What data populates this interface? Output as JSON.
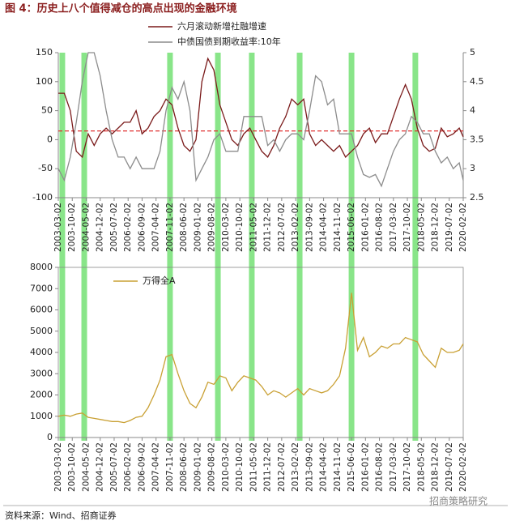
{
  "title": "图 4：历史上八个值得减仓的高点出现的金融环境",
  "source": "资料来源：Wind、招商证券",
  "watermark": "招商策略研究",
  "chart_data": [
    {
      "type": "line",
      "x": [
        "2003-03",
        "2003-06",
        "2003-09",
        "2003-12",
        "2004-03",
        "2004-06",
        "2004-09",
        "2004-12",
        "2005-03",
        "2005-06",
        "2005-09",
        "2005-12",
        "2006-03",
        "2006-06",
        "2006-09",
        "2006-12",
        "2007-03",
        "2007-06",
        "2007-09",
        "2007-12",
        "2008-03",
        "2008-06",
        "2008-09",
        "2008-12",
        "2009-03",
        "2009-06",
        "2009-09",
        "2009-12",
        "2010-03",
        "2010-06",
        "2010-09",
        "2010-12",
        "2011-03",
        "2011-06",
        "2011-09",
        "2011-12",
        "2012-03",
        "2012-06",
        "2012-09",
        "2012-12",
        "2013-03",
        "2013-06",
        "2013-09",
        "2013-12",
        "2014-03",
        "2014-06",
        "2014-09",
        "2014-12",
        "2015-03",
        "2015-06",
        "2015-09",
        "2015-12",
        "2016-03",
        "2016-06",
        "2016-09",
        "2016-12",
        "2017-03",
        "2017-06",
        "2017-09",
        "2017-12",
        "2018-03",
        "2018-06",
        "2018-09",
        "2018-12",
        "2019-03",
        "2019-06",
        "2019-09",
        "2019-12",
        "2020-02"
      ],
      "xlim": [
        "2003-03-02",
        "2020-02-02"
      ],
      "xticks": [
        "2003-03-02",
        "2003-10-02",
        "2004-05-02",
        "2004-12-02",
        "2005-07-02",
        "2006-02-02",
        "2006-09-02",
        "2007-04-02",
        "2007-11-02",
        "2008-06-02",
        "2009-01-02",
        "2009-08-02",
        "2010-03-02",
        "2010-10-02",
        "2011-05-02",
        "2011-12-02",
        "2012-07-02",
        "2013-02-02",
        "2013-09-02",
        "2014-04-02",
        "2014-11-02",
        "2015-06-02",
        "2016-01-02",
        "2016-08-02",
        "2017-03-02",
        "2017-10-02",
        "2018-05-02",
        "2018-12-02",
        "2019-07-02",
        "2020-02-02"
      ],
      "ylim": [
        -100,
        150
      ],
      "yticks": [
        -100,
        -50,
        0,
        50,
        100,
        150
      ],
      "y2lim": [
        2.5,
        5
      ],
      "y2ticks": [
        2.5,
        3,
        3.5,
        4,
        4.5,
        5
      ],
      "reference_line": 15,
      "reference_color": "#e03030",
      "highlights": [
        "2003-05",
        "2004-04",
        "2007-11",
        "2009-11",
        "2011-04",
        "2013-04",
        "2015-06",
        "2018-02"
      ],
      "highlight_color": "#74e074",
      "series": [
        {
          "name": "六月滚动新增社融增速",
          "color": "#7a1a1a",
          "values": [
            80,
            80,
            50,
            -20,
            -30,
            10,
            -10,
            10,
            20,
            10,
            20,
            30,
            30,
            50,
            10,
            20,
            40,
            50,
            70,
            60,
            20,
            -10,
            -20,
            0,
            100,
            140,
            120,
            60,
            30,
            0,
            -10,
            10,
            20,
            0,
            -20,
            -30,
            -10,
            20,
            40,
            70,
            60,
            70,
            10,
            -10,
            0,
            -10,
            -20,
            -10,
            -30,
            -20,
            -10,
            10,
            20,
            -5,
            10,
            10,
            40,
            70,
            95,
            70,
            20,
            -10,
            -20,
            -15,
            20,
            5,
            10,
            20,
            5
          ]
        },
        {
          "name": "中债国债到期收益率:10年",
          "color": "#8c8c8c",
          "axis": "y2",
          "values": [
            3.0,
            2.8,
            3.2,
            3.8,
            4.5,
            5.0,
            5.0,
            4.6,
            4.0,
            3.5,
            3.2,
            3.2,
            3.0,
            3.2,
            3.0,
            3.0,
            3.0,
            3.3,
            4.0,
            4.4,
            4.2,
            4.5,
            4.0,
            2.8,
            3.0,
            3.2,
            3.5,
            3.6,
            3.3,
            3.3,
            3.3,
            3.9,
            3.9,
            3.9,
            3.9,
            3.4,
            3.5,
            3.3,
            3.5,
            3.6,
            3.6,
            3.5,
            4.0,
            4.6,
            4.5,
            4.1,
            4.2,
            3.6,
            3.6,
            3.6,
            3.2,
            2.9,
            2.85,
            2.9,
            2.7,
            3.0,
            3.3,
            3.5,
            3.6,
            3.9,
            3.8,
            3.6,
            3.6,
            3.3,
            3.1,
            3.2,
            3.0,
            3.1,
            2.8
          ]
        }
      ]
    },
    {
      "type": "line",
      "x": [
        "2003-03",
        "2003-06",
        "2003-09",
        "2003-12",
        "2004-03",
        "2004-06",
        "2004-09",
        "2004-12",
        "2005-03",
        "2005-06",
        "2005-09",
        "2005-12",
        "2006-03",
        "2006-06",
        "2006-09",
        "2006-12",
        "2007-03",
        "2007-06",
        "2007-09",
        "2007-12",
        "2008-03",
        "2008-06",
        "2008-09",
        "2008-12",
        "2009-03",
        "2009-06",
        "2009-09",
        "2009-12",
        "2010-03",
        "2010-06",
        "2010-09",
        "2010-12",
        "2011-03",
        "2011-06",
        "2011-09",
        "2011-12",
        "2012-03",
        "2012-06",
        "2012-09",
        "2012-12",
        "2013-03",
        "2013-06",
        "2013-09",
        "2013-12",
        "2014-03",
        "2014-06",
        "2014-09",
        "2014-12",
        "2015-03",
        "2015-06",
        "2015-09",
        "2015-12",
        "2016-03",
        "2016-06",
        "2016-09",
        "2016-12",
        "2017-03",
        "2017-06",
        "2017-09",
        "2017-12",
        "2018-03",
        "2018-06",
        "2018-09",
        "2018-12",
        "2019-03",
        "2019-06",
        "2019-09",
        "2019-12",
        "2020-02"
      ],
      "xlim": [
        "2003-03-02",
        "2020-02-02"
      ],
      "xticks": [
        "2003-03-02",
        "2003-10-02",
        "2004-05-02",
        "2004-12-02",
        "2005-07-02",
        "2006-02-02",
        "2006-09-02",
        "2007-04-02",
        "2007-11-02",
        "2008-06-02",
        "2009-01-02",
        "2009-08-02",
        "2010-03-02",
        "2010-10-02",
        "2011-05-02",
        "2011-12-02",
        "2012-07-02",
        "2013-02-02",
        "2013-09-02",
        "2014-04-02",
        "2014-11-02",
        "2015-06-02",
        "2016-01-02",
        "2016-08-02",
        "2017-03-02",
        "2017-10-02",
        "2018-05-02",
        "2018-12-02",
        "2019-07-02",
        "2020-02-02"
      ],
      "ylim": [
        0,
        8000
      ],
      "yticks": [
        0,
        1000,
        2000,
        3000,
        4000,
        5000,
        6000,
        7000,
        8000
      ],
      "series": [
        {
          "name": "万得全A",
          "color": "#c9a033",
          "values": [
            1000,
            1050,
            1000,
            1100,
            1150,
            950,
            900,
            850,
            800,
            750,
            750,
            700,
            800,
            950,
            1000,
            1400,
            2000,
            2700,
            3800,
            3900,
            3000,
            2200,
            1600,
            1400,
            1900,
            2600,
            2500,
            2900,
            2800,
            2200,
            2600,
            2900,
            2800,
            2700,
            2400,
            2000,
            2200,
            2100,
            1900,
            2100,
            2300,
            2000,
            2300,
            2200,
            2100,
            2200,
            2500,
            2900,
            4200,
            6800,
            4100,
            4700,
            3800,
            4000,
            4300,
            4200,
            4400,
            4400,
            4700,
            4600,
            4500,
            3900,
            3600,
            3300,
            4200,
            4000,
            4000,
            4100,
            4400
          ]
        }
      ]
    }
  ]
}
